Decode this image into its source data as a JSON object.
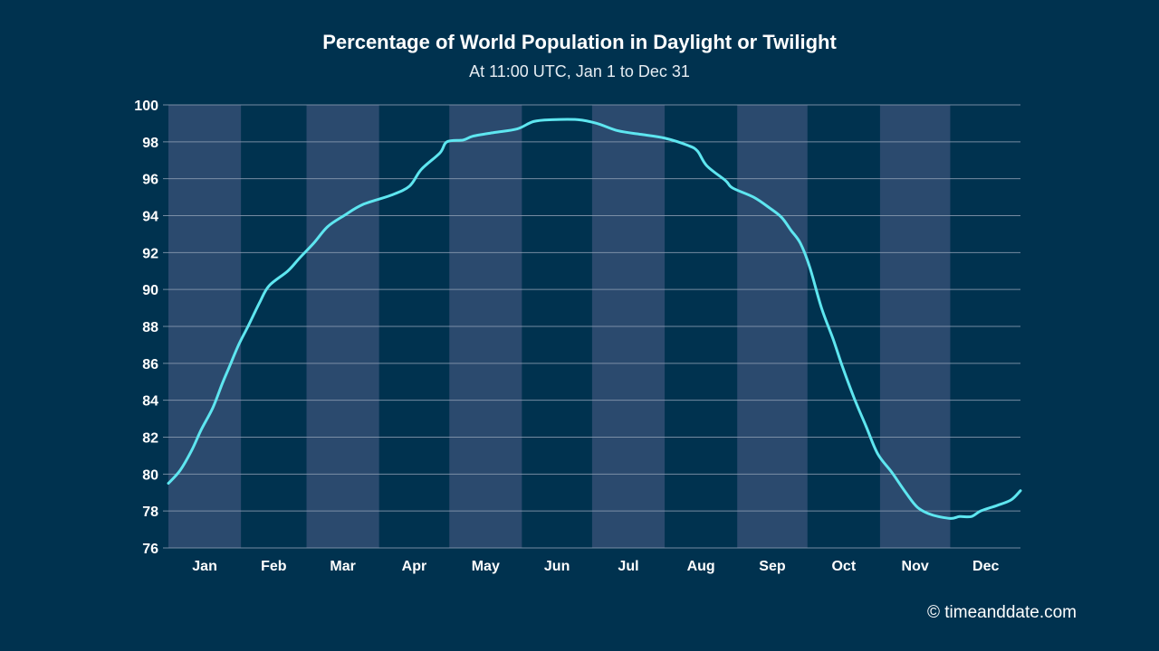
{
  "chart_data": {
    "type": "line",
    "title": "Percentage of World Population in Daylight or Twilight",
    "subtitle": "At 11:00 UTC, Jan 1 to Dec 31",
    "xlabel": "",
    "ylabel": "",
    "ylim": [
      76,
      100
    ],
    "xlim": [
      1,
      365
    ],
    "yticks": [
      76,
      78,
      80,
      82,
      84,
      86,
      88,
      90,
      92,
      94,
      96,
      98,
      100
    ],
    "months": [
      "Jan",
      "Feb",
      "Mar",
      "Apr",
      "May",
      "Jun",
      "Jul",
      "Aug",
      "Sep",
      "Oct",
      "Nov",
      "Dec"
    ],
    "month_start_days": [
      1,
      32,
      60,
      91,
      121,
      152,
      182,
      213,
      244,
      274,
      305,
      335,
      366
    ],
    "shaded_months": [
      "Jan",
      "Mar",
      "May",
      "Jul",
      "Sep",
      "Nov"
    ],
    "grid": true,
    "legend": "none",
    "colors": {
      "line": "#5ee6f0",
      "background": "#00324f",
      "band": "#2b4a6e",
      "grid": "#8a9bb0"
    },
    "series": [
      {
        "name": "Percentage in daylight or twilight",
        "x": [
          1,
          6,
          11,
          15,
          20,
          24,
          27,
          31,
          35,
          40,
          44,
          52,
          57,
          63,
          69,
          76,
          84,
          96,
          104,
          109,
          117,
          120,
          127,
          131,
          140,
          150,
          157,
          165,
          176,
          184,
          193,
          203,
          213,
          223,
          227,
          231,
          239,
          242,
          251,
          258,
          263,
          267,
          271,
          275,
          280,
          285,
          289,
          294,
          299,
          304,
          310,
          316,
          321,
          327,
          335,
          339,
          344,
          348,
          355,
          361,
          365
        ],
        "y": [
          79.5,
          80.2,
          81.3,
          82.4,
          83.6,
          84.9,
          85.8,
          87.0,
          88.0,
          89.3,
          90.2,
          91.0,
          91.7,
          92.5,
          93.4,
          94.0,
          94.6,
          95.1,
          95.6,
          96.5,
          97.4,
          98.0,
          98.1,
          98.3,
          98.5,
          98.7,
          99.1,
          99.2,
          99.2,
          99.0,
          98.6,
          98.4,
          98.2,
          97.8,
          97.5,
          96.7,
          95.9,
          95.5,
          95.0,
          94.4,
          93.9,
          93.2,
          92.5,
          91.2,
          89.0,
          87.3,
          85.8,
          84.1,
          82.6,
          81.1,
          80.1,
          79.0,
          78.2,
          77.8,
          77.6,
          77.7,
          77.7,
          78.0,
          78.3,
          78.6,
          79.1
        ]
      }
    ]
  },
  "credit": "© timeanddate.com"
}
